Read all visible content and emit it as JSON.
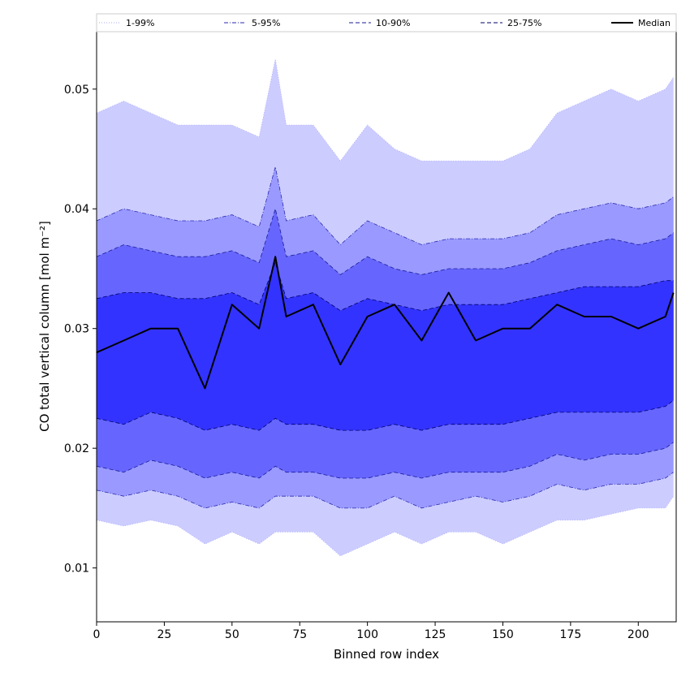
{
  "chart_data": {
    "type": "area",
    "xlabel": "Binned row index",
    "ylabel": "CO total vertical column [mol m⁻²]",
    "xlim": [
      0,
      214
    ],
    "ylim": [
      0.0055,
      0.0548
    ],
    "x_ticks": [
      0,
      25,
      50,
      75,
      100,
      125,
      150,
      175,
      200
    ],
    "y_ticks": [
      0.01,
      0.02,
      0.03,
      0.04,
      0.05
    ],
    "x_tick_labels": [
      "0",
      "25",
      "50",
      "75",
      "100",
      "125",
      "150",
      "175",
      "200"
    ],
    "y_tick_labels": [
      "0.01",
      "0.02",
      "0.03",
      "0.04",
      "0.05"
    ],
    "grid": false,
    "legend_position": "top (above plot, 5 columns)",
    "x": [
      0,
      10,
      20,
      30,
      40,
      50,
      60,
      66,
      70,
      80,
      90,
      100,
      110,
      120,
      130,
      140,
      150,
      160,
      170,
      180,
      190,
      200,
      210,
      213
    ],
    "series": [
      {
        "name": "1-99%",
        "style": "dotted",
        "fill_color": "#ccccff",
        "lower": [
          0.014,
          0.0135,
          0.014,
          0.0135,
          0.012,
          0.013,
          0.012,
          0.013,
          0.013,
          0.013,
          0.011,
          0.012,
          0.013,
          0.012,
          0.013,
          0.013,
          0.012,
          0.013,
          0.014,
          0.014,
          0.0145,
          0.015,
          0.015,
          0.016
        ],
        "upper": [
          0.048,
          0.049,
          0.048,
          0.047,
          0.047,
          0.047,
          0.046,
          0.0525,
          0.047,
          0.047,
          0.044,
          0.047,
          0.045,
          0.044,
          0.044,
          0.044,
          0.044,
          0.045,
          0.048,
          0.049,
          0.05,
          0.049,
          0.05,
          0.051
        ]
      },
      {
        "name": "5-95%",
        "style": "dashdot",
        "fill_color": "#9999ff",
        "lower": [
          0.0165,
          0.016,
          0.0165,
          0.016,
          0.015,
          0.0155,
          0.015,
          0.016,
          0.016,
          0.016,
          0.015,
          0.015,
          0.016,
          0.015,
          0.0155,
          0.016,
          0.0155,
          0.016,
          0.017,
          0.0165,
          0.017,
          0.017,
          0.0175,
          0.018
        ],
        "upper": [
          0.039,
          0.04,
          0.0395,
          0.039,
          0.039,
          0.0395,
          0.0385,
          0.0435,
          0.039,
          0.0395,
          0.037,
          0.039,
          0.038,
          0.037,
          0.0375,
          0.0375,
          0.0375,
          0.038,
          0.0395,
          0.04,
          0.0405,
          0.04,
          0.0405,
          0.041
        ]
      },
      {
        "name": "10-90%",
        "style": "dashed",
        "fill_color": "#6666ff",
        "lower": [
          0.0185,
          0.018,
          0.019,
          0.0185,
          0.0175,
          0.018,
          0.0175,
          0.0185,
          0.018,
          0.018,
          0.0175,
          0.0175,
          0.018,
          0.0175,
          0.018,
          0.018,
          0.018,
          0.0185,
          0.0195,
          0.019,
          0.0195,
          0.0195,
          0.02,
          0.0205
        ],
        "upper": [
          0.036,
          0.037,
          0.0365,
          0.036,
          0.036,
          0.0365,
          0.0355,
          0.04,
          0.036,
          0.0365,
          0.0345,
          0.036,
          0.035,
          0.0345,
          0.035,
          0.035,
          0.035,
          0.0355,
          0.0365,
          0.037,
          0.0375,
          0.037,
          0.0375,
          0.038
        ]
      },
      {
        "name": "25-75%",
        "style": "dashed",
        "fill_color": "#3333ff",
        "lower": [
          0.0225,
          0.022,
          0.023,
          0.0225,
          0.0215,
          0.022,
          0.0215,
          0.0225,
          0.022,
          0.022,
          0.0215,
          0.0215,
          0.022,
          0.0215,
          0.022,
          0.022,
          0.022,
          0.0225,
          0.023,
          0.023,
          0.023,
          0.023,
          0.0235,
          0.024
        ],
        "upper": [
          0.0325,
          0.033,
          0.033,
          0.0325,
          0.0325,
          0.033,
          0.032,
          0.0355,
          0.0325,
          0.033,
          0.0315,
          0.0325,
          0.032,
          0.0315,
          0.032,
          0.032,
          0.032,
          0.0325,
          0.033,
          0.0335,
          0.0335,
          0.0335,
          0.034,
          0.034
        ]
      }
    ],
    "median": {
      "name": "Median",
      "color": "#000000",
      "values": [
        0.028,
        0.029,
        0.03,
        0.03,
        0.025,
        0.032,
        0.03,
        0.036,
        0.031,
        0.032,
        0.027,
        0.031,
        0.032,
        0.029,
        0.033,
        0.029,
        0.03,
        0.03,
        0.032,
        0.031,
        0.031,
        0.03,
        0.031,
        0.033
      ]
    }
  }
}
